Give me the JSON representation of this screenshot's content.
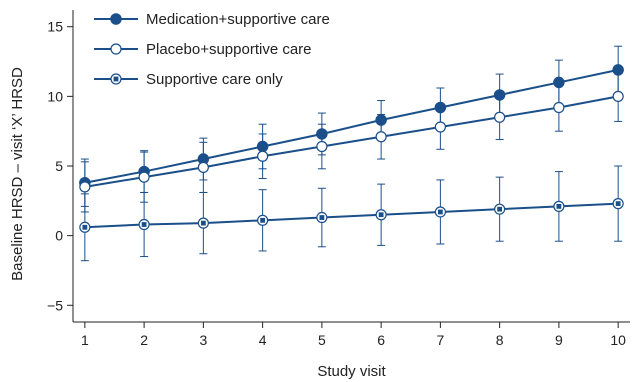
{
  "chart_data": {
    "type": "line",
    "x": [
      1,
      2,
      3,
      4,
      5,
      6,
      7,
      8,
      9,
      10
    ],
    "xlabel": "Study visit",
    "ylabel": "Baseline HRSD – visit ‘X’ HRSD",
    "xlim": [
      0.8,
      10.2
    ],
    "ylim": [
      -6.2,
      16.2
    ],
    "xticks": [
      1,
      2,
      3,
      4,
      5,
      6,
      7,
      8,
      9,
      10
    ],
    "yticks": [
      -5,
      0,
      5,
      10,
      15
    ],
    "ytick_labels": [
      "−5",
      "0",
      "5",
      "10",
      "15"
    ],
    "legend_position": "top-left",
    "grid": false,
    "color": "#1a4f8a",
    "series": [
      {
        "name": "Medication+supportive care",
        "marker": "filled-circle",
        "values": [
          3.8,
          4.6,
          5.5,
          6.4,
          7.3,
          8.3,
          9.2,
          10.1,
          11.0,
          11.9
        ],
        "error": [
          1.7,
          1.5,
          1.5,
          1.6,
          1.5,
          1.4,
          1.4,
          1.5,
          1.6,
          1.7
        ]
      },
      {
        "name": "Placebo+supportive care",
        "marker": "open-circle",
        "values": [
          3.5,
          4.2,
          4.9,
          5.7,
          6.4,
          7.1,
          7.8,
          8.5,
          9.2,
          10.0
        ],
        "error": [
          1.8,
          1.8,
          1.8,
          1.6,
          1.6,
          1.6,
          1.6,
          1.6,
          1.7,
          1.8
        ]
      },
      {
        "name": "Supportive care only",
        "marker": "square-dot",
        "values": [
          0.6,
          0.8,
          0.9,
          1.1,
          1.3,
          1.5,
          1.7,
          1.9,
          2.1,
          2.3
        ],
        "error": [
          2.4,
          2.3,
          2.2,
          2.2,
          2.1,
          2.2,
          2.3,
          2.3,
          2.5,
          2.7
        ]
      }
    ]
  }
}
